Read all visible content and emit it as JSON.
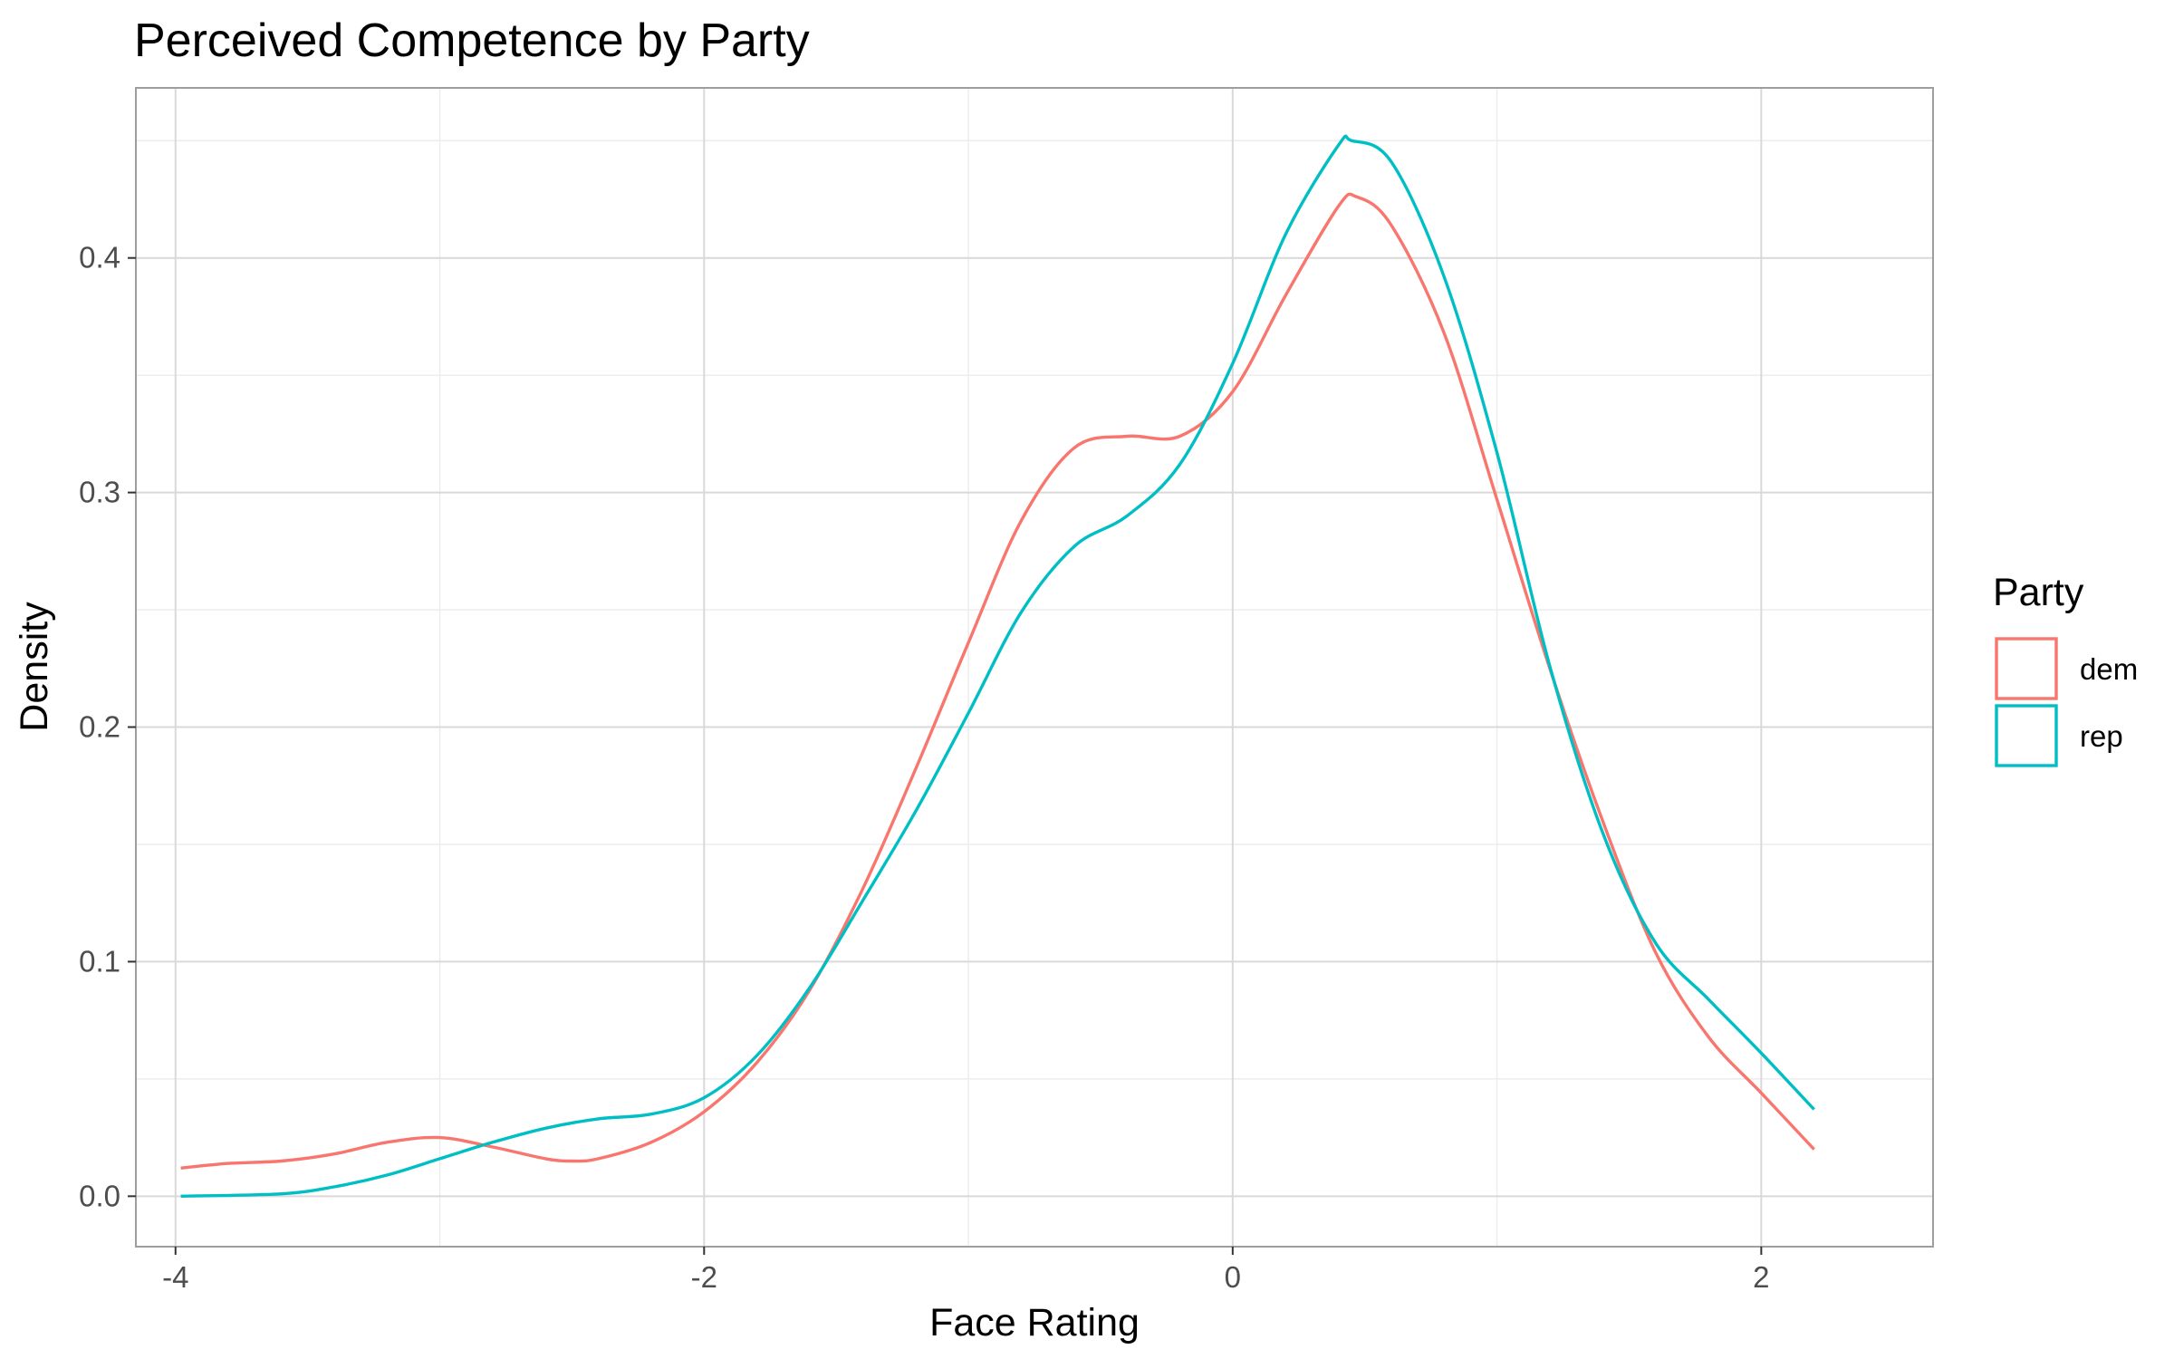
{
  "chart_data": {
    "type": "line",
    "title": "Perceived Competence by Party",
    "xlabel": "Face Rating",
    "ylabel": "Density",
    "xlim": [
      -4.15,
      2.65
    ],
    "ylim": [
      -0.0215,
      0.4725
    ],
    "x_ticks": [
      -4,
      -2,
      0,
      2
    ],
    "x_tick_labels": [
      "-4",
      "-2",
      "0",
      "2"
    ],
    "y_ticks": [
      0.0,
      0.1,
      0.2,
      0.3,
      0.4
    ],
    "y_tick_labels": [
      "0.0",
      "0.1",
      "0.2",
      "0.3",
      "0.4"
    ],
    "x_minor_ticks": [
      -3,
      -1,
      1
    ],
    "y_minor_ticks": [
      0.05,
      0.15,
      0.25,
      0.35,
      0.45
    ],
    "grid": true,
    "legend": {
      "title": "Party",
      "position": "right"
    },
    "series": [
      {
        "name": "dem",
        "color": "#F8766D",
        "points": [
          [
            -3.98,
            0.012
          ],
          [
            -3.8,
            0.014
          ],
          [
            -3.6,
            0.015
          ],
          [
            -3.4,
            0.018
          ],
          [
            -3.2,
            0.023
          ],
          [
            -3.0,
            0.025
          ],
          [
            -2.8,
            0.021
          ],
          [
            -2.6,
            0.016
          ],
          [
            -2.5,
            0.015
          ],
          [
            -2.4,
            0.016
          ],
          [
            -2.2,
            0.023
          ],
          [
            -2.0,
            0.036
          ],
          [
            -1.8,
            0.057
          ],
          [
            -1.6,
            0.088
          ],
          [
            -1.4,
            0.131
          ],
          [
            -1.2,
            0.182
          ],
          [
            -1.0,
            0.236
          ],
          [
            -0.8,
            0.288
          ],
          [
            -0.6,
            0.319
          ],
          [
            -0.4,
            0.324
          ],
          [
            -0.2,
            0.324
          ],
          [
            0.0,
            0.343
          ],
          [
            0.2,
            0.384
          ],
          [
            0.4,
            0.422
          ],
          [
            0.47,
            0.426
          ],
          [
            0.6,
            0.414
          ],
          [
            0.8,
            0.368
          ],
          [
            1.0,
            0.297
          ],
          [
            1.2,
            0.225
          ],
          [
            1.4,
            0.16
          ],
          [
            1.6,
            0.104
          ],
          [
            1.8,
            0.068
          ],
          [
            2.0,
            0.044
          ],
          [
            2.2,
            0.02
          ]
        ]
      },
      {
        "name": "rep",
        "color": "#00BFC4",
        "points": [
          [
            -3.98,
            0.0
          ],
          [
            -3.6,
            0.001
          ],
          [
            -3.4,
            0.004
          ],
          [
            -3.2,
            0.009
          ],
          [
            -3.0,
            0.016
          ],
          [
            -2.8,
            0.023
          ],
          [
            -2.6,
            0.029
          ],
          [
            -2.4,
            0.033
          ],
          [
            -2.2,
            0.035
          ],
          [
            -2.0,
            0.042
          ],
          [
            -1.8,
            0.06
          ],
          [
            -1.6,
            0.089
          ],
          [
            -1.4,
            0.126
          ],
          [
            -1.2,
            0.164
          ],
          [
            -1.0,
            0.206
          ],
          [
            -0.8,
            0.249
          ],
          [
            -0.6,
            0.277
          ],
          [
            -0.4,
            0.29
          ],
          [
            -0.2,
            0.312
          ],
          [
            0.0,
            0.355
          ],
          [
            0.2,
            0.41
          ],
          [
            0.4,
            0.448
          ],
          [
            0.45,
            0.45
          ],
          [
            0.6,
            0.441
          ],
          [
            0.8,
            0.392
          ],
          [
            1.0,
            0.317
          ],
          [
            1.2,
            0.226
          ],
          [
            1.4,
            0.155
          ],
          [
            1.6,
            0.108
          ],
          [
            1.8,
            0.084
          ],
          [
            2.0,
            0.061
          ],
          [
            2.2,
            0.037
          ]
        ]
      }
    ]
  }
}
